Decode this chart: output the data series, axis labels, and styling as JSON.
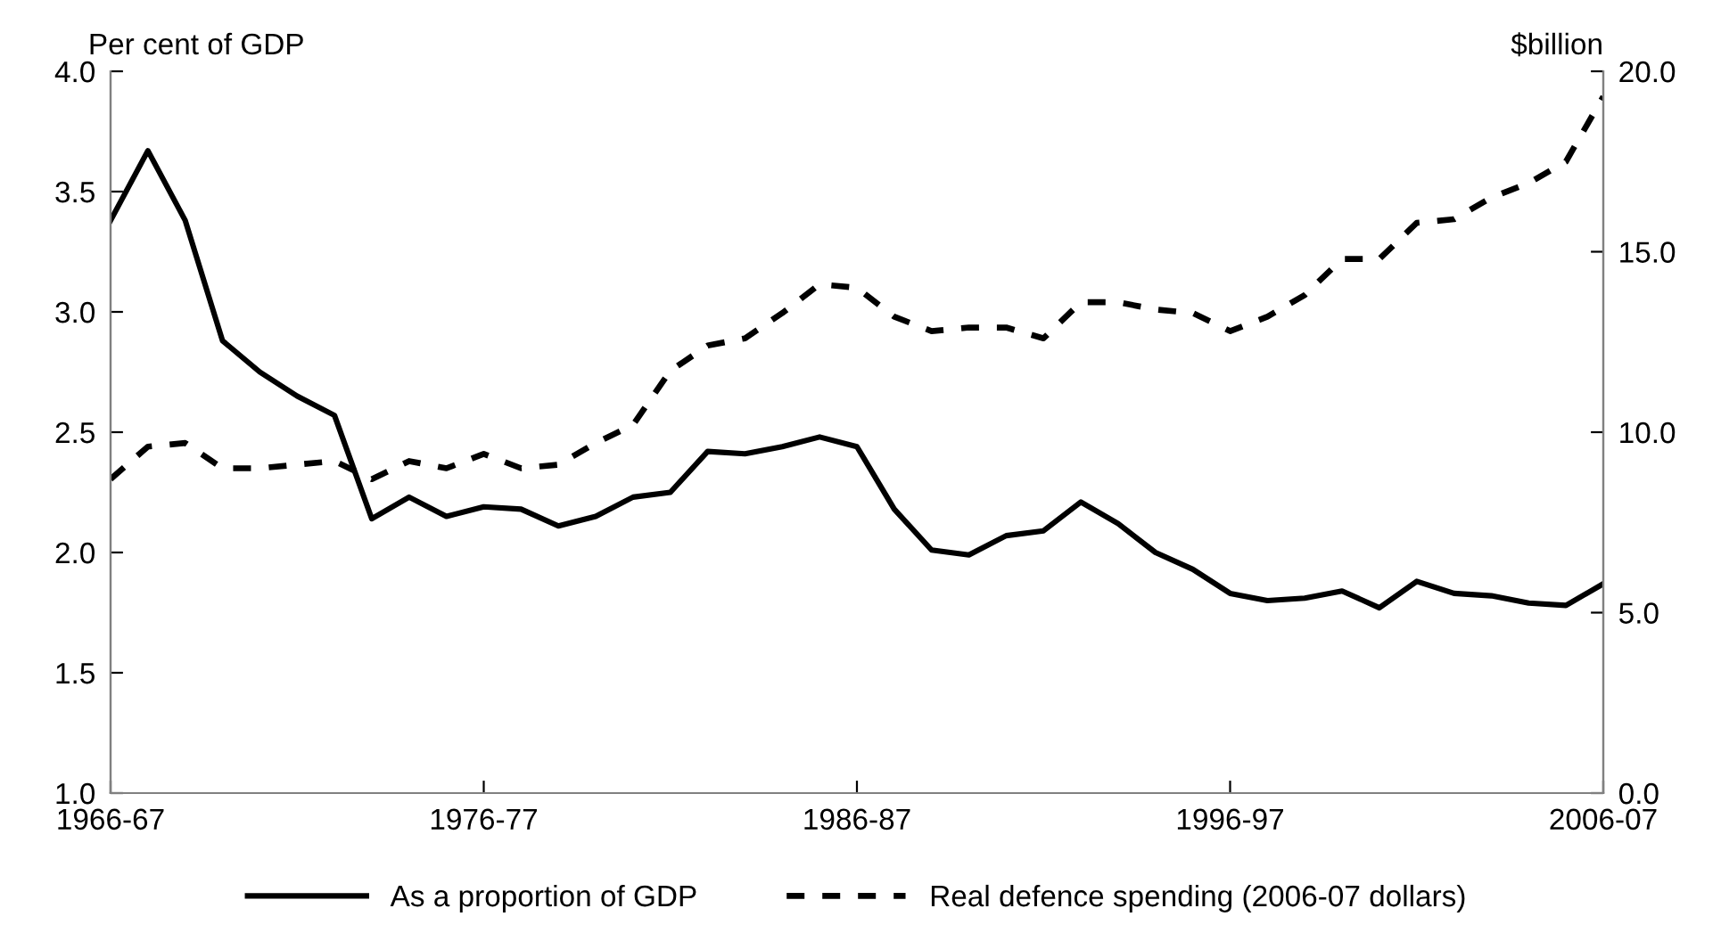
{
  "chart_data": {
    "type": "line",
    "ylabel": "Per cent of GDP",
    "y2label": "$billion",
    "categories": [
      "1966-67",
      null,
      null,
      null,
      null,
      null,
      null,
      null,
      null,
      null,
      "1976-77",
      null,
      null,
      null,
      null,
      null,
      null,
      null,
      null,
      null,
      "1986-87",
      null,
      null,
      null,
      null,
      null,
      null,
      null,
      null,
      null,
      "1996-97",
      null,
      null,
      null,
      null,
      null,
      null,
      null,
      null,
      null,
      "2006-07"
    ],
    "series": [
      {
        "name": "As a proportion of GDP",
        "color": "#000000",
        "line_style": "solid",
        "values": [
          3.38,
          3.67,
          3.38,
          2.88,
          2.75,
          2.65,
          2.57,
          2.14,
          2.23,
          2.15,
          2.19,
          2.18,
          2.11,
          2.15,
          2.23,
          2.25,
          2.42,
          2.41,
          2.44,
          2.48,
          2.44,
          2.18,
          2.01,
          1.99,
          2.07,
          2.09,
          2.21,
          2.12,
          2.0,
          1.93,
          1.83,
          1.8,
          1.81,
          1.84,
          1.77,
          1.88,
          1.83,
          1.82,
          1.79,
          1.78,
          1.87
        ]
      },
      {
        "name": "Real defence spending (2006-07 dollars)",
        "color": "#000000",
        "line_style": "dashed",
        "axis": "y2",
        "values": [
          8.7,
          9.6,
          9.7,
          9.0,
          9.0,
          9.1,
          9.2,
          8.7,
          9.2,
          9.0,
          9.4,
          9.0,
          9.1,
          9.7,
          10.2,
          11.7,
          12.4,
          12.6,
          13.3,
          14.1,
          14.0,
          13.2,
          12.8,
          12.9,
          12.9,
          12.6,
          13.6,
          13.6,
          13.4,
          13.3,
          12.8,
          13.2,
          13.8,
          14.8,
          14.8,
          15.8,
          15.9,
          16.5,
          16.9,
          17.5,
          19.3
        ]
      }
    ],
    "ylim": [
      1.0,
      4.0
    ],
    "yticks": [
      {
        "value": 1.0,
        "label": "1.0"
      },
      {
        "value": 1.5,
        "label": "1.5"
      },
      {
        "value": 2.0,
        "label": "2.0"
      },
      {
        "value": 2.5,
        "label": "2.5"
      },
      {
        "value": 3.0,
        "label": "3.0"
      },
      {
        "value": 3.5,
        "label": "3.5"
      },
      {
        "value": 4.0,
        "label": "4.0"
      }
    ],
    "y2lim": [
      0.0,
      20.0
    ],
    "y2ticks": [
      {
        "value": 0.0,
        "label": "0.0"
      },
      {
        "value": 5.0,
        "label": "5.0"
      },
      {
        "value": 10.0,
        "label": "10.0"
      },
      {
        "value": 15.0,
        "label": "15.0"
      },
      {
        "value": 20.0,
        "label": "20.0"
      }
    ],
    "grid": false,
    "legend": "bottom",
    "marker": "none"
  }
}
